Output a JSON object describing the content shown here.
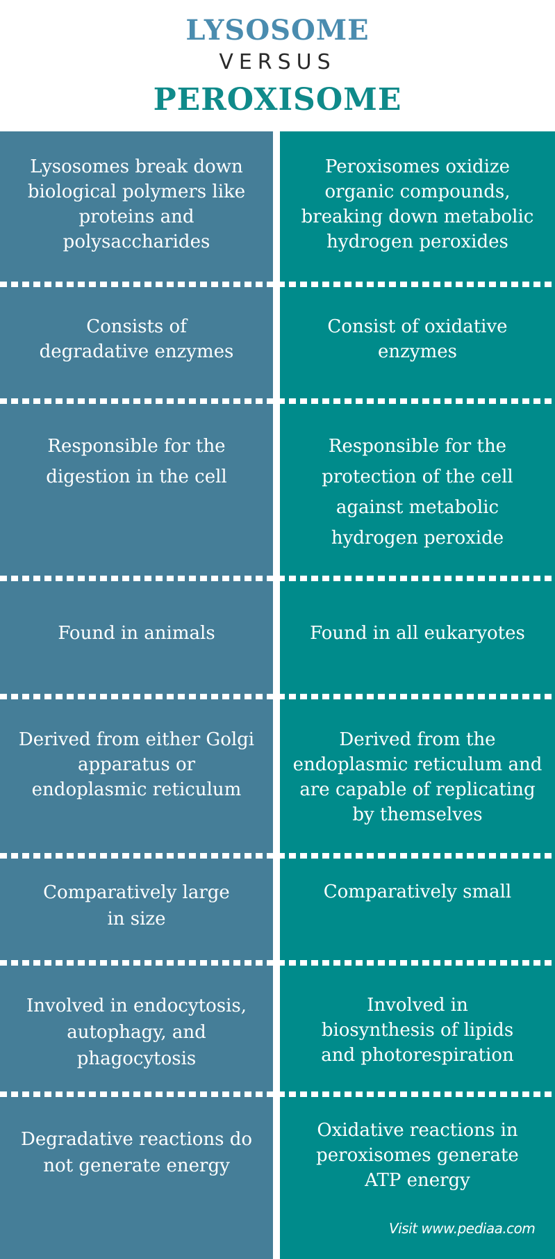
{
  "title": {
    "line1": "LYSOSOME",
    "line2": "VERSUS",
    "line3": "PEROXISOME"
  },
  "rows": [
    {
      "left": "Lysosomes break down biological polymers like proteins and polysaccharides",
      "right": "Peroxisomes oxidize organic compounds, breaking down metabolic hydrogen peroxides"
    },
    {
      "left": "Consists of degradative enzymes",
      "right": "Consist of oxidative enzymes"
    },
    {
      "left": "Responsible for the digestion in the cell",
      "right": "Responsible for the protection of the cell against metabolic hydrogen peroxide"
    },
    {
      "left": "Found in animals",
      "right": "Found in all eukaryotes"
    },
    {
      "left": "Derived from either Golgi apparatus or endoplasmic reticulum",
      "right": "Derived from the endoplasmic reticulum and are capable of replicating by themselves"
    },
    {
      "left": "Comparatively large in size",
      "right": "Comparatively small"
    },
    {
      "left": "Involved in endocytosis, autophagy, and phagocytosis",
      "right": "Involved in biosynthesis of lipids and photorespiration"
    },
    {
      "left": "Degradative reactions do not generate energy",
      "right": "Oxidative reactions in peroxisomes generate ATP energy"
    }
  ],
  "footer": "Visit www.pediaa.com",
  "colors": {
    "left_column": "#457e98",
    "right_column": "#008b8b",
    "title_lysosome": "#4a8caf",
    "title_peroxisome": "#0f8a8a"
  }
}
